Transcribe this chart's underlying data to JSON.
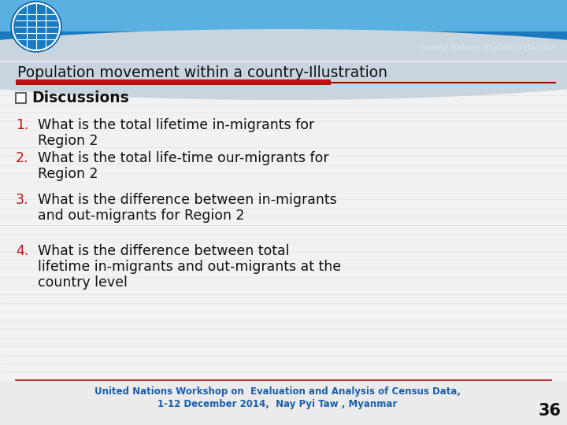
{
  "title": "Population movement within a country-Illustration",
  "items": [
    {
      "num": "1.",
      "text": "What is the total lifetime in-migrants for\nRegion 2"
    },
    {
      "num": "2.",
      "text": "What is the total life-time our-migrants for\nRegion 2"
    },
    {
      "num": "3.",
      "text": "What is the difference between in-migrants\nand out-migrants for Region 2"
    },
    {
      "num": "4.",
      "text": "What is the difference between total\nlifetime in-migrants and out-migrants at the\ncountry level"
    }
  ],
  "footer_line1": "United Nations Workshop on  Evaluation and Analysis of Census Data,",
  "footer_line2": "1-12 December 2014,  Nay Pyi Taw , Myanmar",
  "page_number": "36",
  "bg_color": "#ebebeb",
  "header_blue_dark": "#1a7abf",
  "header_blue_light": "#5ab0e0",
  "header_gray": "#c8d4de",
  "title_color": "#111111",
  "red_bar_color": "#bb1111",
  "red_line_color": "#990000",
  "number_color": "#bb1111",
  "text_color": "#111111",
  "discussions_color": "#111111",
  "footer_color": "#1a5fa8",
  "page_num_color": "#111111",
  "un_text_color": "#e0e8ef",
  "stripe_color": "#dcdcdc"
}
